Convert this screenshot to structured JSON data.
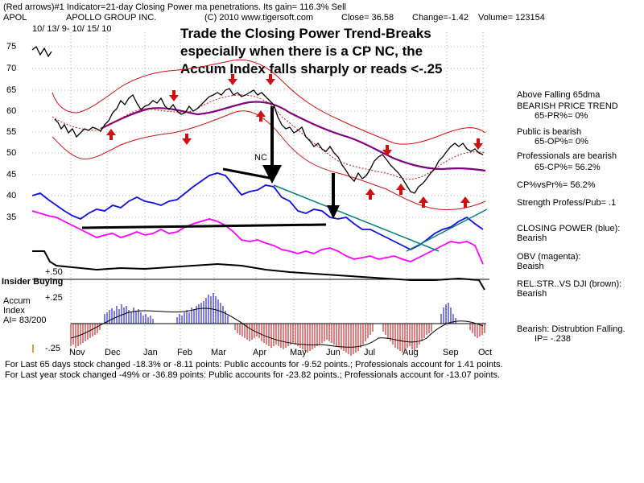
{
  "header": {
    "line1": "(Red arrows)#1 Indicator=21-day Closing Power ma penetrations.  Its gain= 116.3% Sell",
    "ticker": "APOL",
    "company": "APOLLO GROUP INC.",
    "copyright": "(C) 2010  www.tigersoft.com",
    "close": "Close=   36.58",
    "change": "Change=-1.42",
    "volume": "Volume=  123154",
    "dates": "10/ 13/ 9-  10/ 15/ 10"
  },
  "headline": {
    "line1": "Trade the Closing Power Trend-Breaks",
    "line2": "especially when there is a CP NC, the",
    "line3": "Accum Index falls sharply or reads <-.25"
  },
  "annotations": {
    "nc": "NC",
    "insider": "Insider Buying",
    "plus50": "+.50",
    "plus25": "+.25",
    "minus25": "-.25",
    "accum_title": "Accum",
    "accum_index": "Index",
    "ai": "AI= 83/200"
  },
  "sidebar": {
    "s1": "Above Falling 65dma",
    "s2": "BEARISH PRICE TREND",
    "s3": "65-PR%= 0%",
    "s4": "Public is bearish",
    "s5": "65-OP%= 0%",
    "s6": "Professionals are bearish",
    "s7": "65-CP%= 56.2%",
    "s8": "CP%vsPr%=  56.2%",
    "s9": "Strength Profess/Pub= .1",
    "s10": "CLOSING POWER (blue):",
    "s11": "Bearish",
    "s12": "OBV (magenta):",
    "s13": "Beaish",
    "s14": "REL.STR..VS DJI (brown):",
    "s15": "Bearish",
    "s16": "Bearish:  Distrubtion Falling.",
    "s17": "IP= -.238"
  },
  "footer": {
    "line1": "For Last 65 days stock changed -18.3% or -8.11 points:  Public accounts for -9.52 points.;  Professionals account for  1.41 points.",
    "line2": "For Last year stock changed -49% or -36.89 points:  Public accounts for -23.82 points.;  Professionals account for -13.07 points."
  },
  "chart_data": {
    "type": "line",
    "y_ticks": [
      "75",
      "70",
      "65",
      "60",
      "55",
      "50",
      "45",
      "40",
      "35"
    ],
    "x_ticks": [
      "Nov",
      "Dec",
      "Jan",
      "Feb",
      "Mar",
      "Apr",
      "May",
      "Jun",
      "Jul",
      "Aug",
      "Sep",
      "Oct"
    ],
    "ylim": [
      30,
      80
    ],
    "grid": true,
    "colors": {
      "price": "#000000",
      "bands": "#d01010",
      "ma65": "#800080",
      "closing_power": "#1010e0",
      "obv": "#ff00ff",
      "rel_strength": "#000000",
      "accum_positive": "#0000c0",
      "accum_negative": "#c00000",
      "trendline": "#008080"
    }
  }
}
